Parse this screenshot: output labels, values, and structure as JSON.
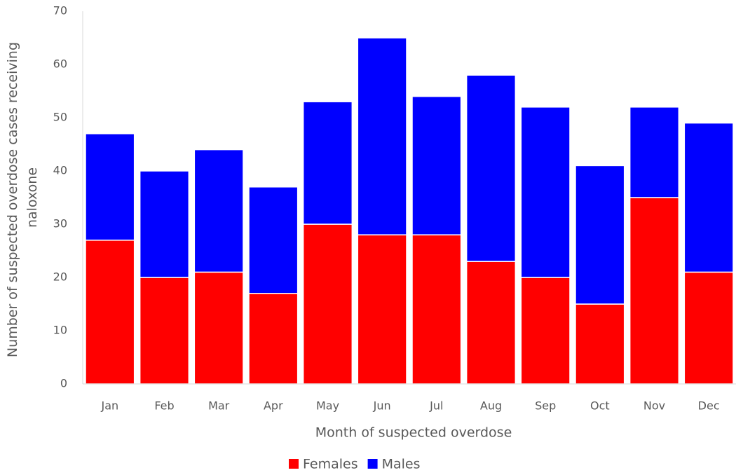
{
  "chart_data": {
    "type": "stacked_bar",
    "x_label": "Month of suspected overdose",
    "y_label": [
      "Number of suspected overdose cases receiving",
      "naloxone"
    ],
    "categories": [
      "Jan",
      "Feb",
      "Mar",
      "Apr",
      "May",
      "Jun",
      "Jul",
      "Aug",
      "Sep",
      "Oct",
      "Nov",
      "Dec"
    ],
    "series": [
      {
        "name": "Females",
        "color": "#ff0000",
        "values": [
          27,
          20,
          21,
          17,
          30,
          28,
          28,
          23,
          20,
          15,
          35,
          21
        ]
      },
      {
        "name": "Males",
        "color": "#0000ff",
        "values": [
          20,
          20,
          23,
          20,
          23,
          37,
          26,
          35,
          32,
          26,
          17,
          28
        ]
      }
    ],
    "ylim": [
      0,
      70
    ],
    "yticks": [
      0,
      10,
      20,
      30,
      40,
      50,
      60,
      70
    ],
    "grid": false,
    "legend": "bottom"
  }
}
